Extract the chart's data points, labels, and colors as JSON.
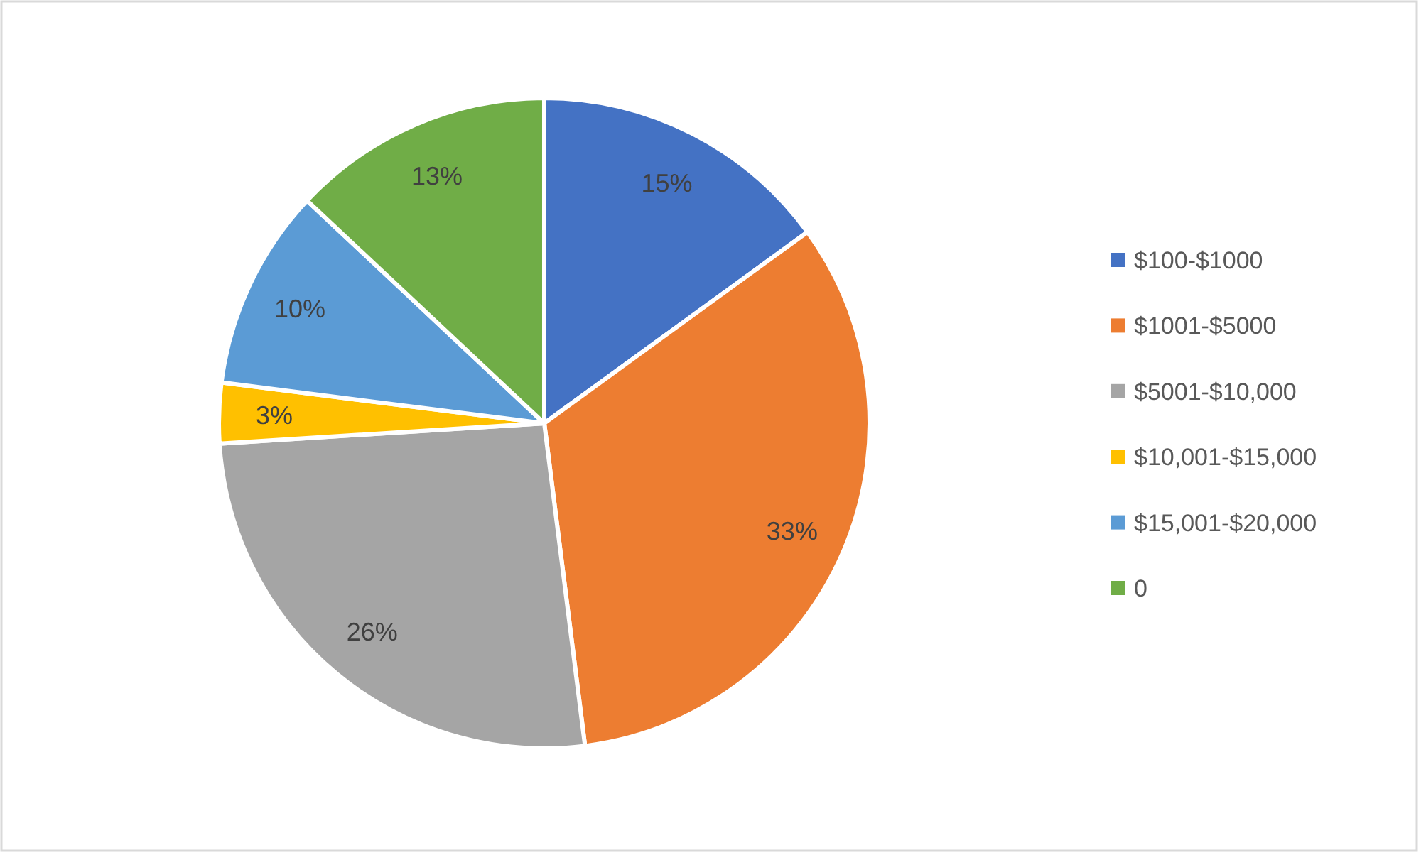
{
  "chart_data": {
    "type": "pie",
    "categories": [
      "$100-$1000",
      "$1001-$5000",
      "$5001-$10,000",
      "$10,001-$15,000",
      "$15,001-$20,000",
      "0"
    ],
    "values": [
      15,
      33,
      26,
      3,
      10,
      13
    ],
    "colors": [
      "#4472c4",
      "#ed7d31",
      "#a5a5a5",
      "#ffc000",
      "#5b9bd5",
      "#70ad47"
    ],
    "value_labels": [
      "15%",
      "33%",
      "26%",
      "3%",
      "10%",
      "13%"
    ],
    "legend": "right"
  }
}
